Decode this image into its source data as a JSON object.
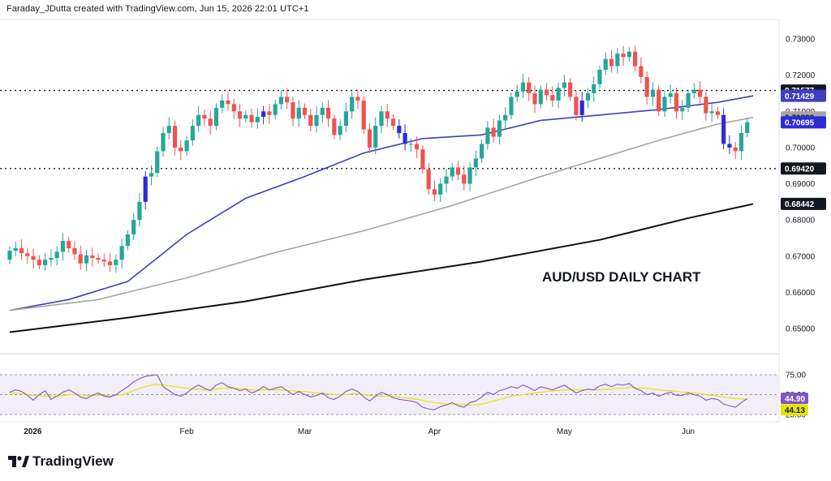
{
  "header": {
    "text": "Faraday_JDutta created with TradingView.com, Jun 15, 2026 22:01 UTC+1"
  },
  "brand": {
    "name": "TradingView"
  },
  "chart_data": {
    "type": "candlestick",
    "title": "AUD/USD DAILY CHART",
    "ylim": [
      0.6435,
      0.7345
    ],
    "y_ticks": [
      "0.73000",
      "0.72000",
      "0.71000",
      "0.70000",
      "0.69000",
      "0.68000",
      "0.67000",
      "0.66000",
      "0.65000"
    ],
    "y_tick_values": [
      0.73,
      0.72,
      0.71,
      0.7,
      0.69,
      0.68,
      0.67,
      0.66,
      0.65
    ],
    "x_ticks": [
      {
        "label": "2026",
        "index": 5
      },
      {
        "label": "Feb",
        "index": 30
      },
      {
        "label": "Mar",
        "index": 50
      },
      {
        "label": "Apr",
        "index": 72
      },
      {
        "label": "May",
        "index": 94
      },
      {
        "label": "Jun",
        "index": 115
      }
    ],
    "n_bars": 126,
    "candle_start": 0.669,
    "candle_closes": [
      0.6715,
      0.6722,
      0.6708,
      0.67,
      0.669,
      0.6675,
      0.669,
      0.6695,
      0.6712,
      0.6742,
      0.6722,
      0.6705,
      0.668,
      0.6702,
      0.6695,
      0.669,
      0.6685,
      0.6675,
      0.669,
      0.6728,
      0.676,
      0.68,
      0.685,
      0.692,
      0.693,
      0.699,
      0.704,
      0.706,
      0.7,
      0.699,
      0.702,
      0.706,
      0.709,
      0.708,
      0.706,
      0.711,
      0.713,
      0.712,
      0.71,
      0.708,
      0.709,
      0.707,
      0.7085,
      0.71,
      0.709,
      0.712,
      0.714,
      0.7125,
      0.708,
      0.711,
      0.709,
      0.706,
      0.709,
      0.711,
      0.708,
      0.7035,
      0.706,
      0.71,
      0.714,
      0.713,
      0.705,
      0.7,
      0.706,
      0.71,
      0.708,
      0.706,
      0.704,
      0.701,
      0.701,
      0.6995,
      0.694,
      0.6885,
      0.687,
      0.69,
      0.692,
      0.6945,
      0.6925,
      0.69,
      0.6945,
      0.697,
      0.701,
      0.7055,
      0.703,
      0.7075,
      0.709,
      0.714,
      0.7155,
      0.718,
      0.715,
      0.712,
      0.716,
      0.7145,
      0.713,
      0.7165,
      0.718,
      0.714,
      0.709,
      0.713,
      0.715,
      0.7175,
      0.7215,
      0.7245,
      0.7225,
      0.726,
      0.725,
      0.7265,
      0.7225,
      0.7195,
      0.714,
      0.716,
      0.71,
      0.714,
      0.715,
      0.71,
      0.711,
      0.715,
      0.716,
      0.714,
      0.7095,
      0.71,
      0.709,
      0.701,
      0.7,
      0.699,
      0.704,
      0.707
    ],
    "series": [
      {
        "name": "MA 50",
        "color": "#3f3fc0",
        "last_value": 0.71429,
        "points": [
          [
            0,
            0.655
          ],
          [
            10,
            0.658
          ],
          [
            20,
            0.663
          ],
          [
            30,
            0.676
          ],
          [
            40,
            0.686
          ],
          [
            50,
            0.692
          ],
          [
            60,
            0.6985
          ],
          [
            70,
            0.7025
          ],
          [
            80,
            0.7035
          ],
          [
            90,
            0.7075
          ],
          [
            100,
            0.709
          ],
          [
            110,
            0.7105
          ],
          [
            120,
            0.7125
          ],
          [
            126,
            0.71429
          ]
        ]
      },
      {
        "name": "MA 100",
        "color": "#a6a6a6",
        "last_value": 0.70832,
        "points": [
          [
            0,
            0.655
          ],
          [
            15,
            0.658
          ],
          [
            30,
            0.664
          ],
          [
            45,
            0.671
          ],
          [
            60,
            0.677
          ],
          [
            75,
            0.684
          ],
          [
            90,
            0.692
          ],
          [
            100,
            0.697
          ],
          [
            110,
            0.702
          ],
          [
            120,
            0.7065
          ],
          [
            126,
            0.70832
          ]
        ]
      },
      {
        "name": "MA 200",
        "color": "#101010",
        "last_value": 0.68442,
        "points": [
          [
            0,
            0.649
          ],
          [
            20,
            0.653
          ],
          [
            40,
            0.6575
          ],
          [
            60,
            0.6635
          ],
          [
            80,
            0.6685
          ],
          [
            100,
            0.6745
          ],
          [
            115,
            0.6805
          ],
          [
            126,
            0.68442
          ]
        ]
      }
    ],
    "horizontal_levels": [
      0.71577,
      0.6942
    ],
    "price_tags": [
      {
        "value": 0.71577,
        "label": "0.71577",
        "bg": "#131722",
        "fg": "#ffffff"
      },
      {
        "value": 0.71429,
        "label": "0.71429",
        "bg": "#3f3fc0",
        "fg": "#ffffff"
      },
      {
        "value": 0.70832,
        "label": "0.70832",
        "bg": "#a6a6a6",
        "fg": "#131722"
      },
      {
        "value": 0.70695,
        "label": "0.70695",
        "bg": "#2b2bd8",
        "fg": "#ffffff"
      },
      {
        "value": 0.6942,
        "label": "0.69420",
        "bg": "#131722",
        "fg": "#ffffff"
      },
      {
        "value": 0.68442,
        "label": "0.68442",
        "bg": "#131722",
        "fg": "#ffffff"
      }
    ],
    "rsi": {
      "ylim": [
        25,
        75
      ],
      "y_ticks": [
        "75.00",
        "50.00",
        "25.00"
      ],
      "values": [
        53,
        56,
        54,
        49,
        43,
        50,
        55,
        44,
        48,
        53,
        56,
        52,
        47,
        45,
        49,
        52,
        48,
        47,
        50,
        55,
        60,
        66,
        70,
        73,
        74,
        75,
        60,
        55,
        50,
        48,
        52,
        58,
        62,
        58,
        55,
        62,
        65,
        60,
        58,
        55,
        57,
        52,
        55,
        60,
        56,
        58,
        60,
        55,
        50,
        54,
        50,
        47,
        49,
        52,
        46,
        44,
        48,
        54,
        57,
        54,
        47,
        42,
        48,
        53,
        50,
        46,
        44,
        43,
        42,
        40,
        34,
        32,
        31,
        35,
        37,
        40,
        36,
        34,
        40,
        42,
        47,
        53,
        50,
        55,
        57,
        60,
        58,
        62,
        59,
        55,
        60,
        58,
        56,
        59,
        62,
        57,
        52,
        55,
        57,
        56,
        61,
        63,
        60,
        63,
        62,
        64,
        58,
        55,
        50,
        52,
        48,
        51,
        53,
        49,
        49,
        52,
        50,
        48,
        43,
        45,
        44,
        38,
        36,
        34,
        40,
        44.9
      ],
      "ma_values": [
        52,
        52,
        51,
        50,
        49,
        49,
        48,
        48,
        48,
        49,
        50,
        50,
        50,
        49,
        49,
        49,
        49,
        48,
        49,
        50,
        52,
        55,
        58,
        60,
        62,
        63,
        62,
        61,
        60,
        59,
        58,
        57,
        57,
        56,
        56,
        57,
        58,
        58,
        58,
        57,
        57,
        56,
        56,
        56,
        56,
        56,
        56,
        55,
        55,
        54,
        54,
        53,
        52,
        52,
        51,
        50,
        50,
        50,
        51,
        51,
        50,
        49,
        48,
        48,
        48,
        48,
        47,
        46,
        45,
        44,
        43,
        41,
        40,
        39,
        38,
        38,
        38,
        37,
        37,
        37,
        38,
        40,
        42,
        44,
        46,
        48,
        49,
        50,
        51,
        52,
        53,
        54,
        55,
        55,
        56,
        56,
        56,
        56,
        56,
        56,
        56,
        57,
        57,
        58,
        58,
        59,
        59,
        58,
        58,
        57,
        56,
        55,
        55,
        54,
        53,
        53,
        52,
        51,
        50,
        49,
        48,
        47,
        46,
        45,
        44.5,
        44.13
      ],
      "last_value": "44.90",
      "ma_last_value": "44.13",
      "rsi_color": "#7e57c2",
      "ma_color": "#e5e500"
    },
    "colors": {
      "up": "#26a69a",
      "down": "#ef5350",
      "blue_candle": "#2b2bd8"
    }
  }
}
